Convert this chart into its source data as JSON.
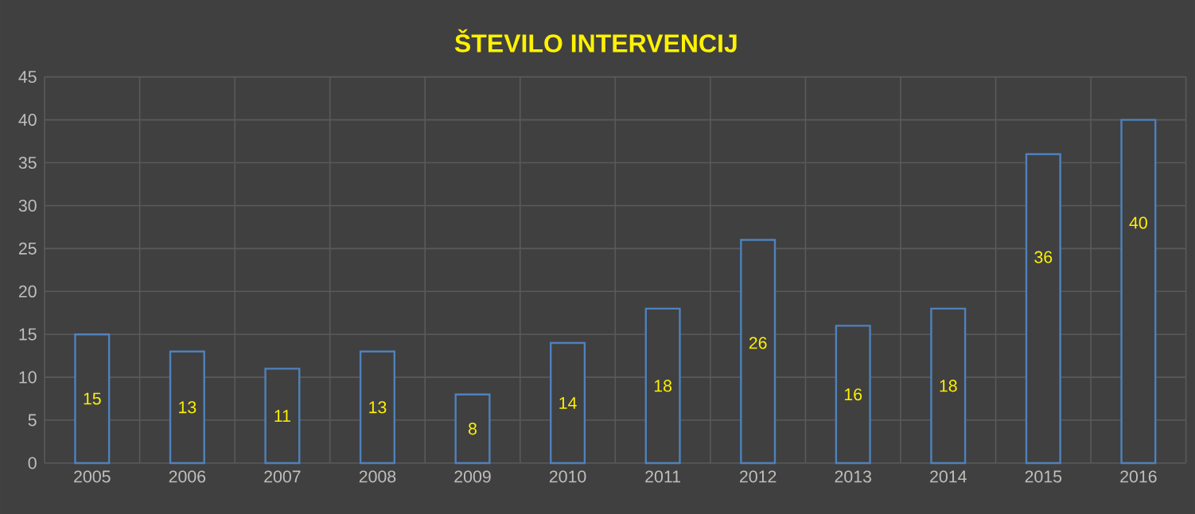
{
  "chart_data": {
    "type": "bar",
    "title": "ŠTEVILO INTERVENCIJ",
    "categories": [
      "2005",
      "2006",
      "2007",
      "2008",
      "2009",
      "2010",
      "2011",
      "2012",
      "2013",
      "2014",
      "2015",
      "2016"
    ],
    "values": [
      15,
      13,
      11,
      13,
      8,
      14,
      18,
      26,
      16,
      18,
      36,
      40
    ],
    "color": "#4f81bd",
    "ylim": [
      0,
      45
    ],
    "yticks": [
      0,
      5,
      10,
      15,
      20,
      25,
      30,
      35,
      40,
      45
    ],
    "grid": true,
    "data_labels": true
  }
}
